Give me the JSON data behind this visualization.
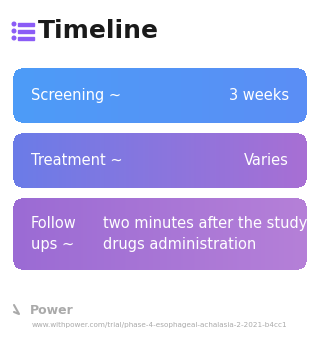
{
  "title": "Timeline",
  "title_fontsize": 18,
  "title_color": "#1a1a1a",
  "title_icon_color": "#8b5cf6",
  "background_color": "#ffffff",
  "rows": [
    {
      "label_left": "Screening ~",
      "label_right": "3 weeks",
      "color_left": "#4d9cf8",
      "color_right": "#5b8ef5",
      "font_size": 10.5,
      "multiline": false
    },
    {
      "label_left": "Treatment ~",
      "label_right": "Varies",
      "color_left": "#6b7ce8",
      "color_right": "#a86fd4",
      "font_size": 10.5,
      "multiline": false
    },
    {
      "label_left1": "Follow",
      "label_left2": "ups ~",
      "label_right1": "two minutes after the study",
      "label_right2": "drugs administration",
      "color_left": "#9b6bd4",
      "color_right": "#b580d8",
      "font_size": 10.5,
      "multiline": true
    }
  ],
  "footer_logo_color": "#aaaaaa",
  "footer_text": "Power",
  "footer_url": "www.withpower.com/trial/phase-4-esophageal-achalasia-2-2021-b4cc1",
  "footer_color": "#aaaaaa",
  "footer_fontsize": 5.2,
  "footer_text_fontsize": 9
}
